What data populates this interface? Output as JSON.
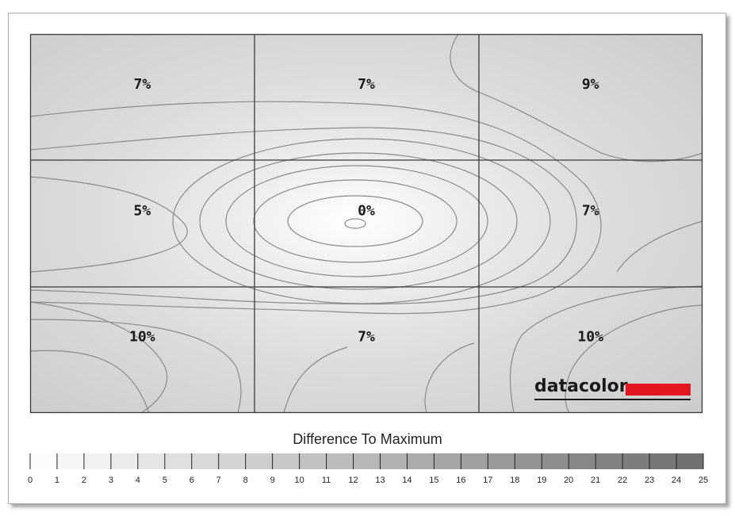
{
  "chart_data": {
    "type": "heatmap",
    "title": "",
    "rows": 3,
    "cols": 3,
    "cells": [
      [
        "7%",
        "7%",
        "9%"
      ],
      [
        "5%",
        "0%",
        "7%"
      ],
      [
        "10%",
        "7%",
        "10%"
      ]
    ],
    "values": [
      [
        7,
        7,
        9
      ],
      [
        5,
        0,
        7
      ],
      [
        10,
        7,
        10
      ]
    ],
    "legend": {
      "title": "Difference To Maximum",
      "ticks": [
        "0",
        "1",
        "2",
        "3",
        "4",
        "5",
        "6",
        "7",
        "8",
        "9",
        "10",
        "11",
        "12",
        "13",
        "14",
        "15",
        "16",
        "17",
        "18",
        "19",
        "20",
        "21",
        "22",
        "23",
        "24",
        "25"
      ],
      "range": [
        0,
        25
      ]
    },
    "grid": true
  },
  "logo": {
    "text": "datacolor",
    "accent_color": "#e3171f"
  },
  "colors": {
    "min": "#ffffff",
    "max": "#6b6b6b",
    "contour": "#8a8a8a",
    "grid": "#3a3a3a"
  }
}
